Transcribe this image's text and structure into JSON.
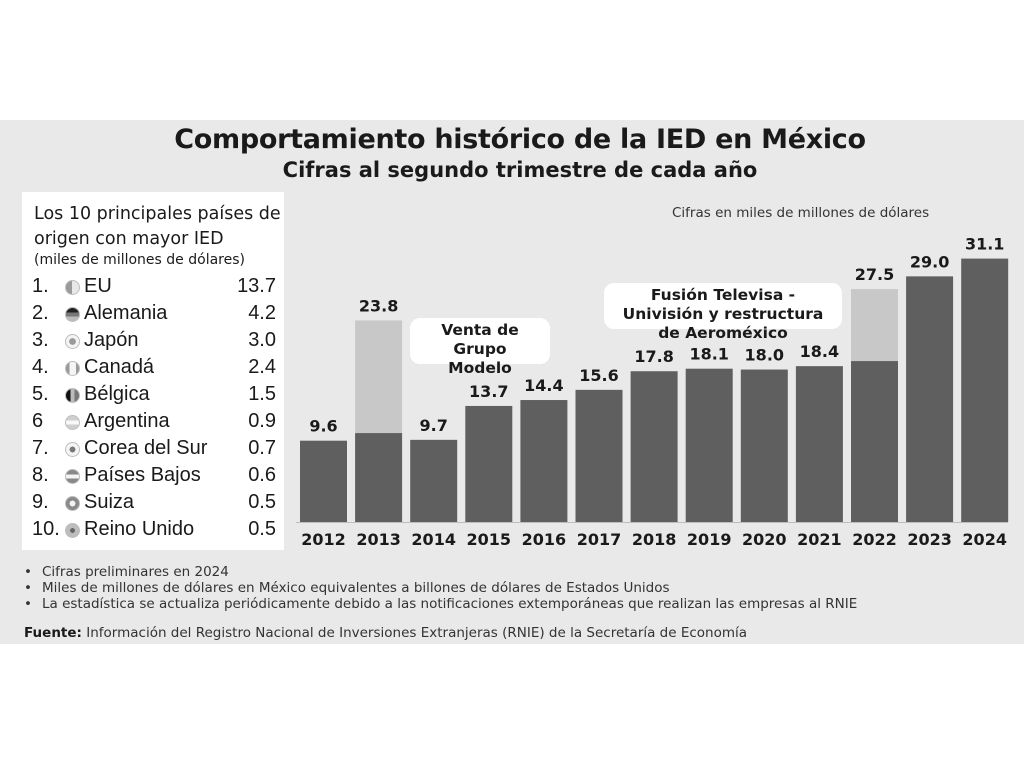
{
  "header": {
    "title": "Comportamiento histórico de la IED en México",
    "subtitle": "Cifras al segundo trimestre de cada año"
  },
  "country_box": {
    "title": "Los 10 principales países de origen con mayor IED",
    "units": "(miles de millones de dólares)",
    "countries": [
      {
        "rank": "1.",
        "name": "EU",
        "value": "13.7",
        "flag_icon": "usa-flag-icon"
      },
      {
        "rank": "2.",
        "name": "Alemania",
        "value": "4.2",
        "flag_icon": "germany-flag-icon"
      },
      {
        "rank": "3.",
        "name": "Japón",
        "value": "3.0",
        "flag_icon": "japan-flag-icon"
      },
      {
        "rank": "4.",
        "name": "Canadá",
        "value": "2.4",
        "flag_icon": "canada-flag-icon"
      },
      {
        "rank": "5.",
        "name": "Bélgica",
        "value": "1.5",
        "flag_icon": "belgium-flag-icon"
      },
      {
        "rank": "6",
        "name": "Argentina",
        "value": "0.9",
        "flag_icon": "argentina-flag-icon"
      },
      {
        "rank": "7.",
        "name": "Corea del Sur",
        "value": "0.7",
        "flag_icon": "south-korea-flag-icon"
      },
      {
        "rank": "8.",
        "name": "Países Bajos",
        "value": "0.6",
        "flag_icon": "netherlands-flag-icon"
      },
      {
        "rank": "9.",
        "name": "Suiza",
        "value": "0.5",
        "flag_icon": "switzerland-flag-icon"
      },
      {
        "rank": "10.",
        "name": "Reino Unido",
        "value": "0.5",
        "flag_icon": "uk-flag-icon"
      }
    ]
  },
  "chart_data": {
    "type": "bar",
    "title": "Comportamiento histórico de la IED en México",
    "subtitle": "Cifras al segundo trimestre de cada año",
    "units_note": "Cifras en miles de millones de dólares",
    "categories": [
      "2012",
      "2013",
      "2014",
      "2015",
      "2016",
      "2017",
      "2018",
      "2019",
      "2020",
      "2021",
      "2022",
      "2023",
      "2024"
    ],
    "values": [
      9.6,
      23.8,
      9.7,
      13.7,
      14.4,
      15.6,
      17.8,
      18.1,
      18.0,
      18.4,
      27.5,
      29.0,
      31.1
    ],
    "value_labels": [
      "9.6",
      "23.8",
      "9.7",
      "13.7",
      "14.4",
      "15.6",
      "17.8",
      "18.1",
      "18.0",
      "18.4",
      "27.5",
      "29.0",
      "31.1"
    ],
    "highlighted_portion": {
      "2013": 13.3,
      "2022": 8.5
    },
    "annotations": [
      {
        "text": "Venta de Grupo Modelo",
        "category": "2013"
      },
      {
        "text": "Fusión Televisa - Univisión y restructura de Aeroméxico",
        "category": "2022"
      }
    ],
    "ylim": [
      0,
      32
    ],
    "grid": false,
    "colors": {
      "bar": "#5f5f5f",
      "highlight": "#c8c8c8",
      "panel": "#e9e9e9"
    }
  },
  "notes": [
    "Cifras preliminares en 2024",
    "Miles de millones de dólares en México equivalentes a billones de dólares de Estados Unidos",
    "La estadística se actualiza periódicamente debido a las notificaciones extemporáneas que realizan las empresas al RNIE"
  ],
  "source": {
    "label": "Fuente:",
    "text": "Información del Registro Nacional de Inversiones Extranjeras (RNIE) de la Secretaría de Economía"
  }
}
